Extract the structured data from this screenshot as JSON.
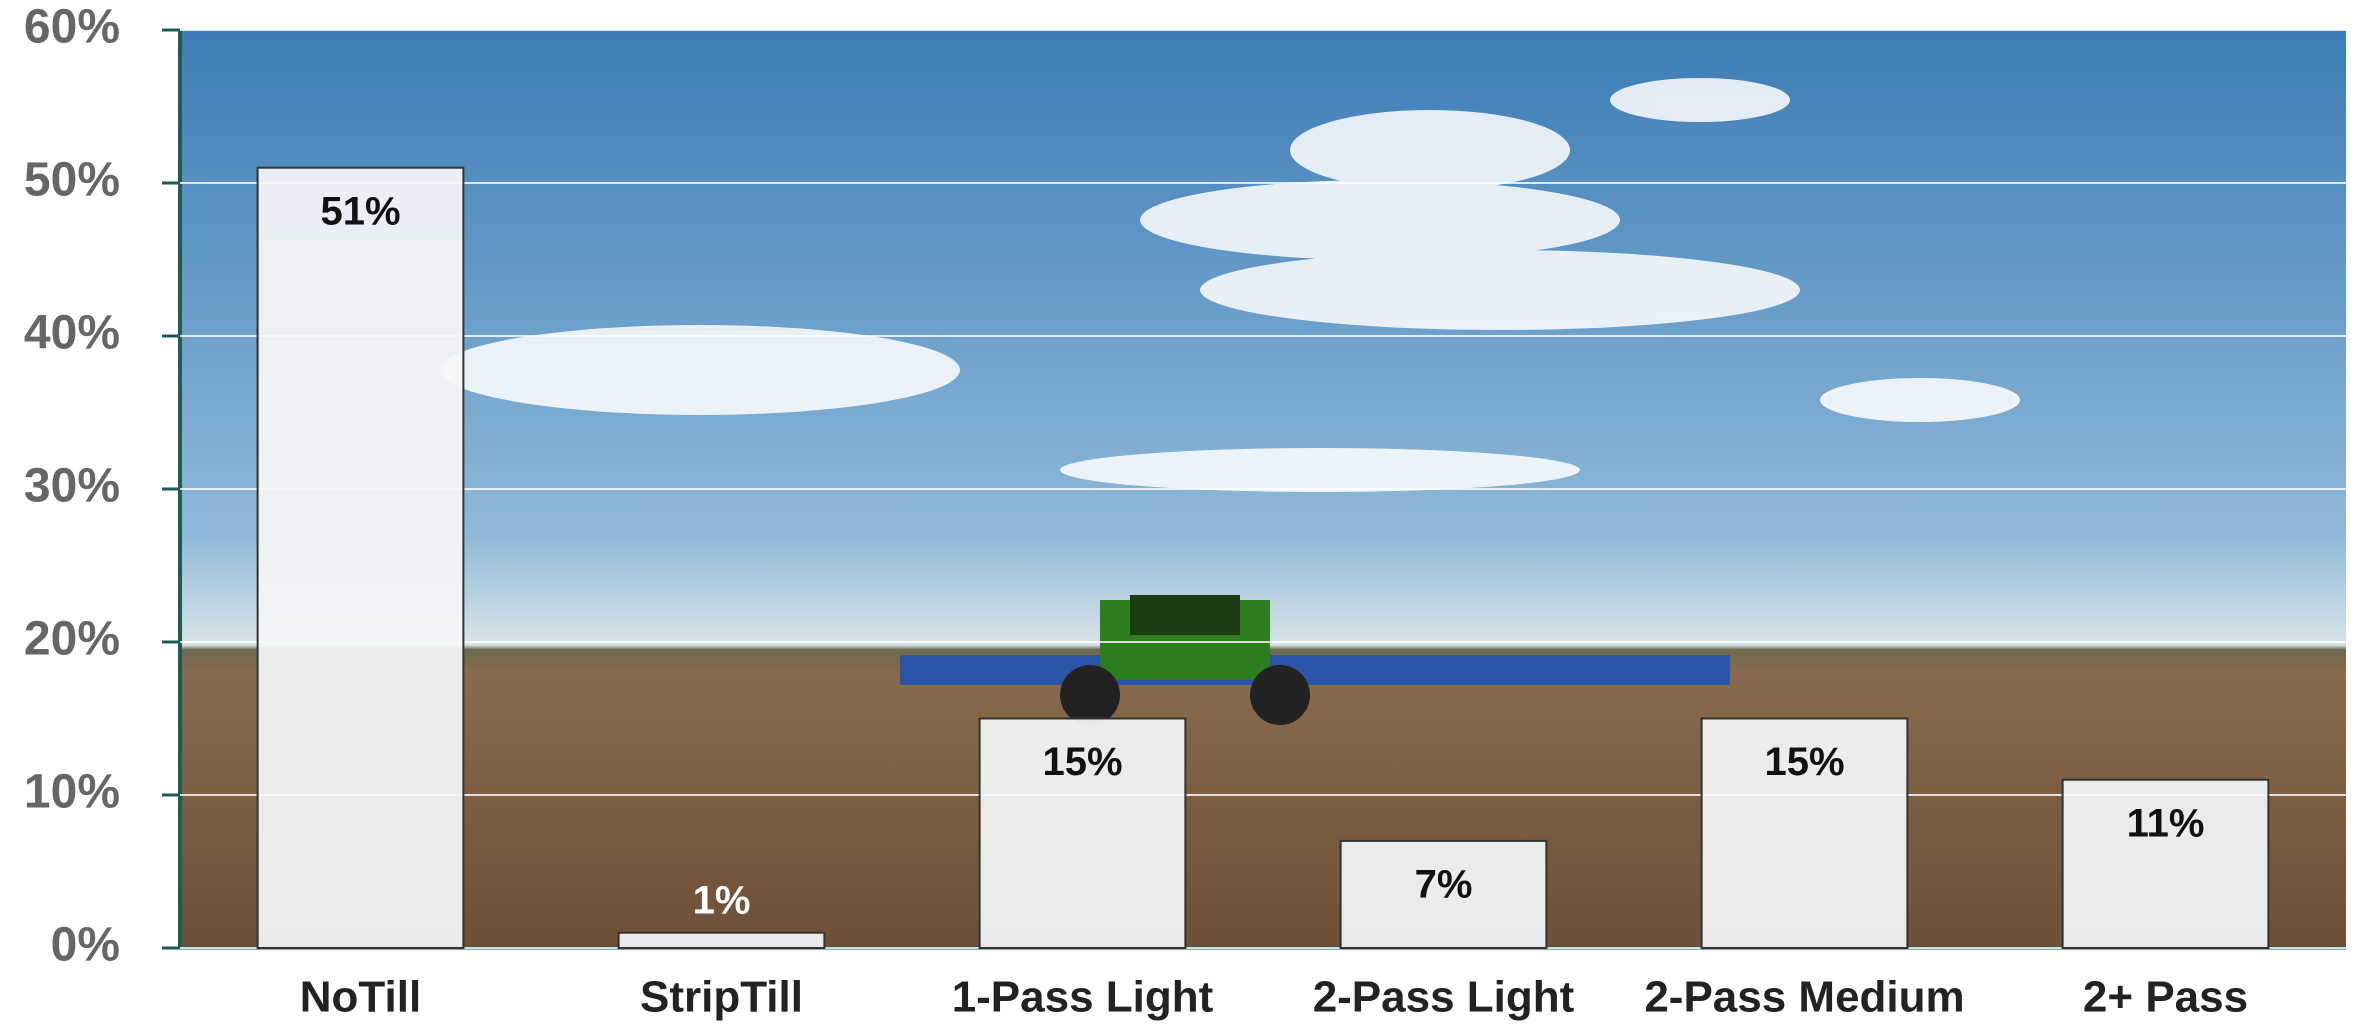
{
  "chart_data": {
    "type": "bar",
    "categories": [
      "NoTill",
      "StripTill",
      "1-Pass Light",
      "2-Pass Light",
      "2-Pass Medium",
      "2+ Pass"
    ],
    "values": [
      51,
      1,
      15,
      7,
      15,
      11
    ],
    "value_labels": [
      "51%",
      "1%",
      "15%",
      "7%",
      "15%",
      "11%"
    ],
    "color": "#f4f6f8",
    "ylim": [
      0,
      60
    ],
    "yticks": [
      {
        "value": 0,
        "label": "0%"
      },
      {
        "value": 10,
        "label": "10%"
      },
      {
        "value": 20,
        "label": "20%"
      },
      {
        "value": 30,
        "label": "30%"
      },
      {
        "value": 40,
        "label": "40%"
      },
      {
        "value": 50,
        "label": "50%"
      },
      {
        "value": 60,
        "label": "60%"
      }
    ],
    "grid": true
  }
}
